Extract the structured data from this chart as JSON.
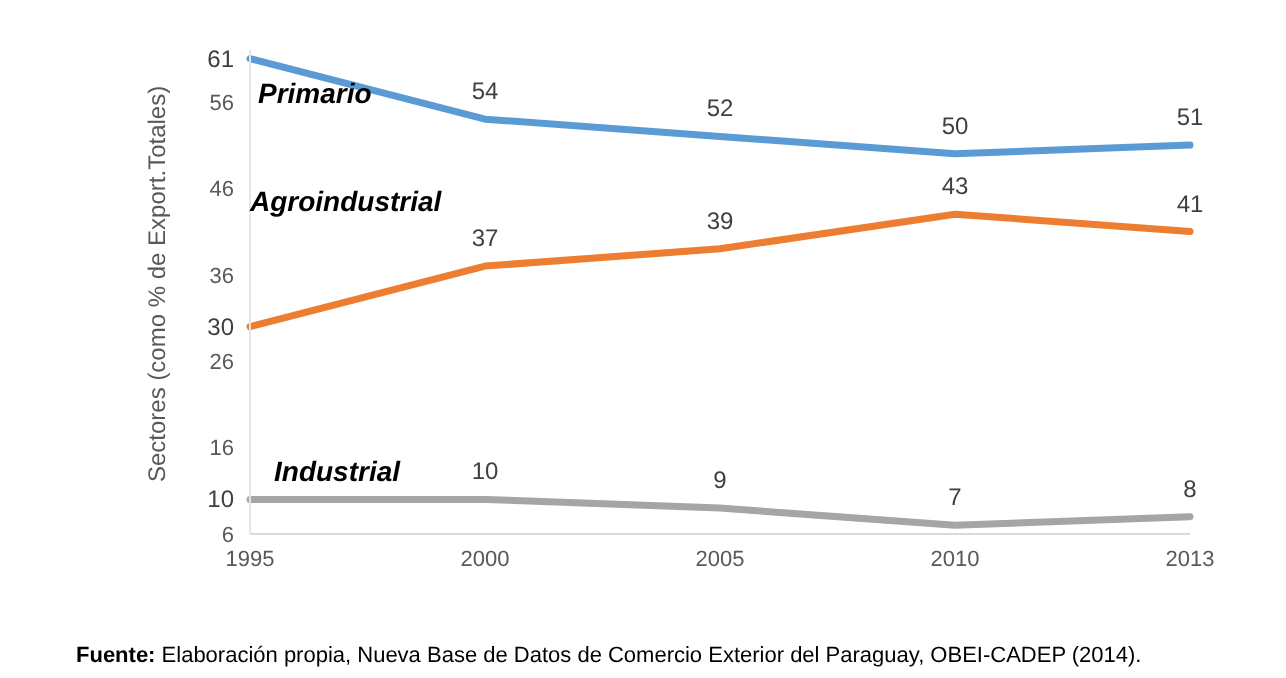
{
  "chart_data": {
    "type": "line",
    "ylabel": "Sectores (como % de Export.Totales)",
    "categories": [
      "1995",
      "2000",
      "2005",
      "2010",
      "2013"
    ],
    "series": [
      {
        "name": "Primario",
        "color": "#5b9bd5",
        "values": [
          61,
          54,
          52,
          50,
          51
        ]
      },
      {
        "name": "Agroindustrial",
        "color": "#ed7d31",
        "values": [
          30,
          37,
          39,
          43,
          41
        ]
      },
      {
        "name": "Industrial",
        "color": "#a5a5a5",
        "values": [
          10,
          10,
          9,
          7,
          8
        ]
      }
    ],
    "ylim": [
      6,
      62
    ],
    "yticks": [
      6,
      16,
      26,
      36,
      46,
      56
    ],
    "grid": false,
    "legend": false,
    "marker": "none",
    "data_labels": true,
    "annotations": [
      "Fuente: Elaboración propia, Nueva Base de Datos de Comercio Exterior del Paraguay, OBEI-CADEP (2014)."
    ]
  }
}
